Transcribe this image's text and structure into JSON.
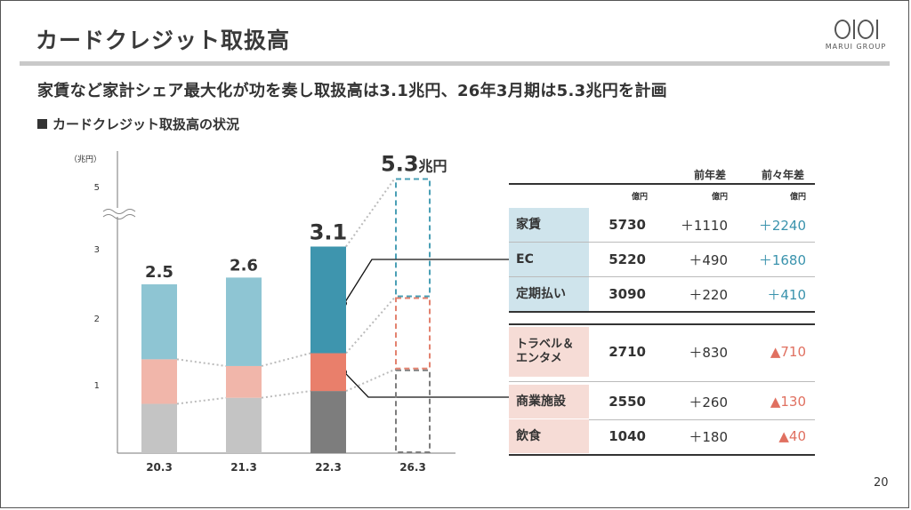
{
  "header": {
    "title": "カードクレジット取扱高",
    "subtitle": "家賃など家計シェア最大化が功を奏し取扱高は3.1兆円、26年3月期は5.3兆円を計画",
    "section": "カードクレジット取扱高の状況",
    "logo_text": "MARUI GROUP",
    "page_number": "20"
  },
  "colors": {
    "blue": "#8ec5d3",
    "blue_dark": "#3e95ae",
    "pink": "#f1b6aa",
    "pink_dark": "#e97f6b",
    "gray": "#c4c4c4",
    "gray_dark": "#7d7d7d",
    "plan_blue": "#4a9fb5",
    "plan_red": "#e3826f",
    "plan_gray": "#7d7d7d",
    "teal_text": "#3a93ad",
    "red_text": "#e07060"
  },
  "chart_data": {
    "type": "bar",
    "ylabel": "（兆円）",
    "y_ticks": [
      "1",
      "2",
      "3",
      "5"
    ],
    "categories": [
      "20.3",
      "21.3",
      "22.3",
      "26.3"
    ],
    "totals": [
      "2.5",
      "2.6",
      "3.1",
      "5.3"
    ],
    "total_unit": "兆円",
    "series": [
      {
        "values": [
          0.73,
          0.82,
          0.92,
          1.24
        ]
      },
      {
        "values": [
          0.66,
          0.47,
          0.56,
          1.07
        ]
      },
      {
        "values": [
          1.11,
          1.31,
          1.62,
          2.99
        ]
      }
    ],
    "planned_index": 3,
    "axis_break": true
  },
  "table": {
    "head_prev": "前年差",
    "head_prev2": "前々年差",
    "unit": "億円",
    "group1": [
      {
        "label": "家賃",
        "value": "5730",
        "d1": "＋1110",
        "d2": "＋2240"
      },
      {
        "label": "EC",
        "value": "5220",
        "d1": "＋490",
        "d2": "＋1680"
      },
      {
        "label": "定期払い",
        "value": "3090",
        "d1": "＋220",
        "d2": "＋410"
      }
    ],
    "group2": [
      {
        "label": "トラベル＆エンタメ",
        "value": "2710",
        "d1": "＋830",
        "d2": "▲710"
      },
      {
        "label": "商業施設",
        "value": "2550",
        "d1": "＋260",
        "d2": "▲130"
      },
      {
        "label": "飲食",
        "value": "1040",
        "d1": "＋180",
        "d2": "▲40"
      }
    ]
  }
}
